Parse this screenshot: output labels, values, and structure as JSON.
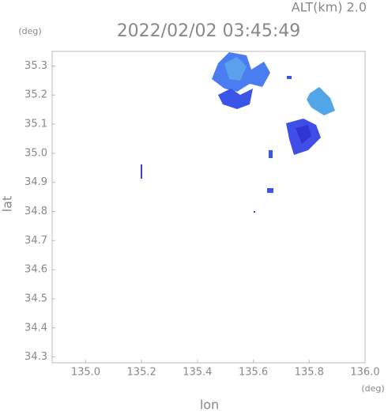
{
  "chart_data": {
    "type": "radar-map",
    "title": "2022/02/02 03:45:49",
    "subtitle": "ALT(km) 2.0",
    "x_label": "lon",
    "y_label": "lat",
    "x_unit": "(deg)",
    "y_unit": "(deg)",
    "xlim": [
      134.88,
      136.0
    ],
    "xticks": [
      {
        "value": 135.0,
        "label": "135.0"
      },
      135.2,
      135.4,
      135.6,
      135.8,
      {
        "value": 136.0,
        "label": "136.0"
      }
    ],
    "ylim": [
      34.28,
      35.35
    ],
    "yticks": [
      34.3,
      34.4,
      34.5,
      34.6,
      34.7,
      34.8,
      34.9,
      {
        "value": 35.0,
        "label": "35.0"
      },
      35.1,
      35.2,
      35.3
    ]
  }
}
